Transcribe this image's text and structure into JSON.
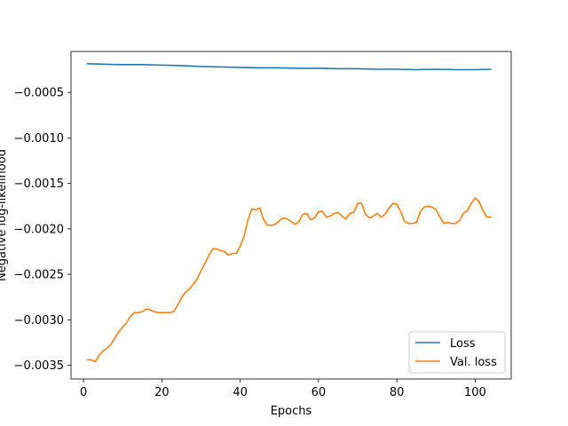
{
  "chart_data": {
    "type": "line",
    "title": "",
    "xlabel": "Epochs",
    "ylabel": "Negative log-likelihood",
    "xlim": [
      -3.2,
      109.2
    ],
    "ylim": [
      -0.00365,
      -5e-05
    ],
    "xticks": [
      0,
      20,
      40,
      60,
      80,
      100
    ],
    "xtick_labels": [
      "0",
      "20",
      "40",
      "60",
      "80",
      "100"
    ],
    "yticks": [
      -0.0005,
      -0.001,
      -0.0015,
      -0.002,
      -0.0025,
      -0.003,
      -0.0035
    ],
    "ytick_labels": [
      "−0.0005",
      "−0.0010",
      "−0.0015",
      "−0.0020",
      "−0.0025",
      "−0.0030",
      "−0.0035"
    ],
    "grid": false,
    "legend_position": "lower-right",
    "series": [
      {
        "name": "Loss",
        "color": "#1f77b4",
        "x": [
          1,
          5,
          10,
          15,
          20,
          25,
          30,
          35,
          40,
          45,
          50,
          55,
          60,
          65,
          70,
          75,
          80,
          85,
          90,
          95,
          100,
          104
        ],
        "y": [
          -0.000185,
          -0.00019,
          -0.000195,
          -0.000195,
          -0.0002,
          -0.000205,
          -0.000215,
          -0.00022,
          -0.000225,
          -0.00023,
          -0.00023,
          -0.000235,
          -0.000235,
          -0.00024,
          -0.00024,
          -0.000245,
          -0.000245,
          -0.00025,
          -0.000245,
          -0.00025,
          -0.00025,
          -0.000245
        ]
      },
      {
        "name": "Val. loss",
        "color": "#ff7f0e",
        "x": [
          1,
          2,
          3,
          4,
          5,
          6,
          7,
          8,
          9,
          10,
          11,
          12,
          13,
          14,
          15,
          16,
          17,
          18,
          19,
          20,
          21,
          22,
          23,
          24,
          25,
          26,
          27,
          28,
          29,
          30,
          31,
          32,
          33,
          34,
          35,
          36,
          37,
          38,
          39,
          40,
          41,
          42,
          43,
          44,
          45,
          46,
          47,
          48,
          49,
          50,
          51,
          52,
          53,
          54,
          55,
          56,
          57,
          58,
          59,
          60,
          61,
          62,
          63,
          64,
          65,
          66,
          67,
          68,
          69,
          70,
          71,
          72,
          73,
          74,
          75,
          76,
          77,
          78,
          79,
          80,
          81,
          82,
          83,
          84,
          85,
          86,
          87,
          88,
          89,
          90,
          91,
          92,
          93,
          94,
          95,
          96,
          97,
          98,
          99,
          100,
          101,
          102,
          103,
          104
        ],
        "y": [
          -0.00344,
          -0.00344,
          -0.00346,
          -0.00339,
          -0.00334,
          -0.00331,
          -0.00327,
          -0.0032,
          -0.00313,
          -0.00308,
          -0.00303,
          -0.00296,
          -0.00292,
          -0.00292,
          -0.00291,
          -0.00288,
          -0.00289,
          -0.00291,
          -0.00292,
          -0.00292,
          -0.00292,
          -0.00292,
          -0.00291,
          -0.00284,
          -0.00276,
          -0.0027,
          -0.00266,
          -0.00261,
          -0.00255,
          -0.00246,
          -0.00238,
          -0.00229,
          -0.00222,
          -0.00222,
          -0.00224,
          -0.00225,
          -0.00229,
          -0.00227,
          -0.00227,
          -0.00219,
          -0.00208,
          -0.0019,
          -0.00178,
          -0.00179,
          -0.00177,
          -0.0019,
          -0.00196,
          -0.00196,
          -0.00195,
          -0.00191,
          -0.00188,
          -0.00189,
          -0.00192,
          -0.00195,
          -0.00192,
          -0.00184,
          -0.00183,
          -0.0019,
          -0.00188,
          -0.00181,
          -0.00181,
          -0.00187,
          -0.00186,
          -0.00183,
          -0.00182,
          -0.00186,
          -0.00189,
          -0.00183,
          -0.00182,
          -0.00172,
          -0.00172,
          -0.00184,
          -0.00188,
          -0.00186,
          -0.00183,
          -0.00187,
          -0.00184,
          -0.00177,
          -0.00172,
          -0.00173,
          -0.00181,
          -0.00192,
          -0.00194,
          -0.00194,
          -0.00193,
          -0.00181,
          -0.00176,
          -0.00175,
          -0.00176,
          -0.00179,
          -0.00187,
          -0.00194,
          -0.00193,
          -0.00194,
          -0.00194,
          -0.00191,
          -0.00183,
          -0.0018,
          -0.00172,
          -0.00166,
          -0.0017,
          -0.0018,
          -0.00187,
          -0.00187
        ]
      }
    ]
  }
}
